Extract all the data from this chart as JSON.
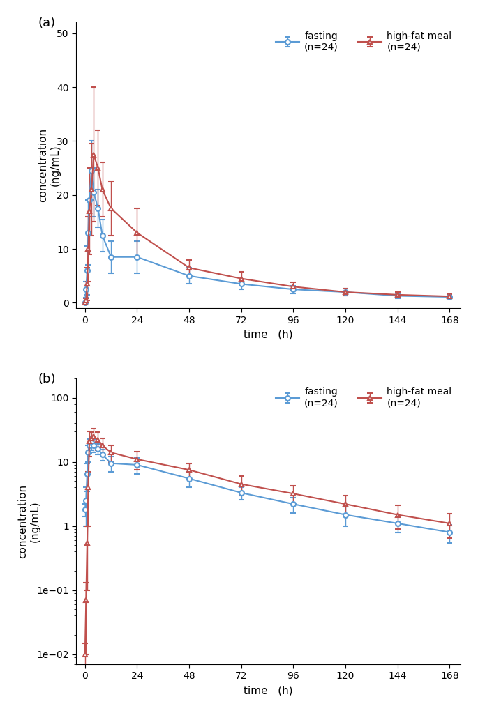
{
  "time_points": [
    0,
    0.5,
    1,
    1.5,
    2,
    3,
    4,
    6,
    8,
    12,
    24,
    48,
    72,
    96,
    120,
    144,
    168
  ],
  "fasting_mean": [
    0,
    2.5,
    6.0,
    13.0,
    19.0,
    24.5,
    20.5,
    17.5,
    12.5,
    8.5,
    8.5,
    5.0,
    3.5,
    2.5,
    2.0,
    1.3,
    1.1
  ],
  "fasting_err": [
    0,
    1.5,
    4.5,
    6.0,
    6.0,
    5.5,
    4.5,
    3.5,
    3.0,
    3.0,
    3.0,
    1.5,
    1.0,
    0.7,
    0.6,
    0.4,
    0.3
  ],
  "hfm_mean": [
    0,
    0.5,
    3.5,
    10.0,
    17.0,
    21.0,
    27.5,
    25.0,
    21.0,
    17.5,
    13.0,
    6.5,
    4.5,
    3.0,
    2.0,
    1.5,
    1.2
  ],
  "hfm_err_low": [
    0,
    0.4,
    3.0,
    6.0,
    8.0,
    8.5,
    12.5,
    7.0,
    5.0,
    5.0,
    4.5,
    1.5,
    1.2,
    0.8,
    0.7,
    0.5,
    0.4
  ],
  "hfm_err_high": [
    0,
    0.4,
    3.0,
    6.0,
    8.0,
    8.5,
    12.5,
    7.0,
    5.0,
    5.0,
    4.5,
    1.5,
    1.2,
    0.8,
    0.7,
    0.5,
    0.4
  ],
  "fasting_mean_b": [
    1.8,
    2.5,
    6.5,
    14.0,
    18.0,
    20.0,
    18.0,
    16.0,
    13.0,
    9.5,
    9.0,
    5.5,
    3.3,
    2.2,
    1.5,
    1.1,
    0.8
  ],
  "fasting_err_b": [
    0.4,
    1.5,
    3.0,
    4.0,
    4.5,
    5.0,
    4.0,
    3.0,
    2.5,
    2.5,
    2.5,
    1.5,
    0.7,
    0.6,
    0.5,
    0.3,
    0.25
  ],
  "hfm_mean_b": [
    0.01,
    0.07,
    0.55,
    4.0,
    21.0,
    23.0,
    25.0,
    22.0,
    18.0,
    14.0,
    11.0,
    7.5,
    4.5,
    3.2,
    2.2,
    1.5,
    1.1
  ],
  "hfm_err_low_b": [
    0.005,
    0.06,
    0.45,
    3.0,
    9.0,
    6.0,
    8.0,
    7.0,
    5.0,
    4.0,
    3.5,
    2.0,
    1.5,
    1.0,
    0.8,
    0.6,
    0.45
  ],
  "hfm_err_high_b": [
    0.005,
    0.06,
    0.45,
    3.0,
    9.0,
    6.0,
    8.0,
    7.0,
    5.0,
    4.0,
    3.5,
    2.0,
    1.5,
    1.0,
    0.8,
    0.6,
    0.45
  ],
  "blue_color": "#5b9bd5",
  "red_color": "#c0504d",
  "xlabel": "time   (h)",
  "ylabel_top": "concentration\n(ng/mL)",
  "ylabel_side": "concentration",
  "ylabel_unit": "(ng/mL)",
  "xticks": [
    0,
    24,
    48,
    72,
    96,
    120,
    144,
    168
  ],
  "xlim": [
    -4,
    173
  ],
  "ylim_a": [
    -1,
    52
  ],
  "yticks_a": [
    0,
    10,
    20,
    30,
    40,
    50
  ],
  "ylim_b": [
    0.007,
    200
  ],
  "label_fasting": "fasting\n(n=24)",
  "label_hfm": "high-fat meal\n(n=24)"
}
